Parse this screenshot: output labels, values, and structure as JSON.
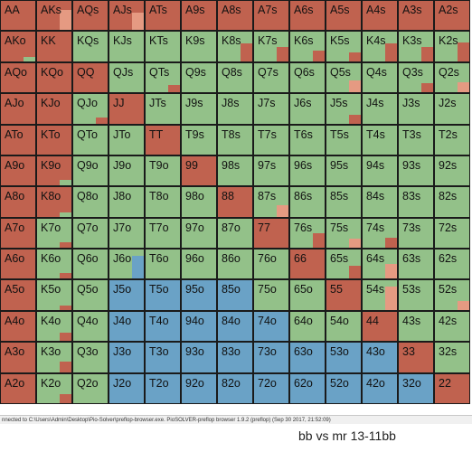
{
  "colors": {
    "raise": "#c0624f",
    "raise_small": "#e59a82",
    "call": "#93c189",
    "fold": "#6aa2c6"
  },
  "range_grid": {
    "cells": [
      [
        [
          "AA",
          "raise"
        ],
        [
          "AKs",
          "raise"
        ],
        [
          "AQs",
          "raise"
        ],
        [
          "AJs",
          "raise"
        ],
        [
          "ATs",
          "raise"
        ],
        [
          "A9s",
          "raise"
        ],
        [
          "A8s",
          "raise"
        ],
        [
          "A7s",
          "raise"
        ],
        [
          "A6s",
          "raise"
        ],
        [
          "A5s",
          "raise"
        ],
        [
          "A4s",
          "raise"
        ],
        [
          "A3s",
          "raise"
        ],
        [
          "A2s",
          "raise"
        ]
      ],
      [
        [
          "AKo",
          "raise"
        ],
        [
          "KK",
          "raise"
        ],
        [
          "KQs",
          "call"
        ],
        [
          "KJs",
          "call"
        ],
        [
          "KTs",
          "call"
        ],
        [
          "K9s",
          "call"
        ],
        [
          "K8s",
          "call"
        ],
        [
          "K7s",
          "call"
        ],
        [
          "K6s",
          "call"
        ],
        [
          "K5s",
          "call"
        ],
        [
          "K4s",
          "call"
        ],
        [
          "K3s",
          "call"
        ],
        [
          "K2s",
          "call"
        ]
      ],
      [
        [
          "AQo",
          "raise"
        ],
        [
          "KQo",
          "raise"
        ],
        [
          "QQ",
          "raise"
        ],
        [
          "QJs",
          "call"
        ],
        [
          "QTs",
          "call"
        ],
        [
          "Q9s",
          "call"
        ],
        [
          "Q8s",
          "call"
        ],
        [
          "Q7s",
          "call"
        ],
        [
          "Q6s",
          "call"
        ],
        [
          "Q5s",
          "call"
        ],
        [
          "Q4s",
          "call"
        ],
        [
          "Q3s",
          "call"
        ],
        [
          "Q2s",
          "call"
        ]
      ],
      [
        [
          "AJo",
          "raise"
        ],
        [
          "KJo",
          "raise"
        ],
        [
          "QJo",
          "call"
        ],
        [
          "JJ",
          "raise"
        ],
        [
          "JTs",
          "call"
        ],
        [
          "J9s",
          "call"
        ],
        [
          "J8s",
          "call"
        ],
        [
          "J7s",
          "call"
        ],
        [
          "J6s",
          "call"
        ],
        [
          "J5s",
          "call"
        ],
        [
          "J4s",
          "call"
        ],
        [
          "J3s",
          "call"
        ],
        [
          "J2s",
          "call"
        ]
      ],
      [
        [
          "ATo",
          "raise"
        ],
        [
          "KTo",
          "raise"
        ],
        [
          "QTo",
          "call"
        ],
        [
          "JTo",
          "call"
        ],
        [
          "TT",
          "raise"
        ],
        [
          "T9s",
          "call"
        ],
        [
          "T8s",
          "call"
        ],
        [
          "T7s",
          "call"
        ],
        [
          "T6s",
          "call"
        ],
        [
          "T5s",
          "call"
        ],
        [
          "T4s",
          "call"
        ],
        [
          "T3s",
          "call"
        ],
        [
          "T2s",
          "call"
        ]
      ],
      [
        [
          "A9o",
          "raise"
        ],
        [
          "K9o",
          "raise"
        ],
        [
          "Q9o",
          "call"
        ],
        [
          "J9o",
          "call"
        ],
        [
          "T9o",
          "call"
        ],
        [
          "99",
          "raise"
        ],
        [
          "98s",
          "call"
        ],
        [
          "97s",
          "call"
        ],
        [
          "96s",
          "call"
        ],
        [
          "95s",
          "call"
        ],
        [
          "94s",
          "call"
        ],
        [
          "93s",
          "call"
        ],
        [
          "92s",
          "call"
        ]
      ],
      [
        [
          "A8o",
          "raise"
        ],
        [
          "K8o",
          "raise"
        ],
        [
          "Q8o",
          "call"
        ],
        [
          "J8o",
          "call"
        ],
        [
          "T8o",
          "call"
        ],
        [
          "98o",
          "call"
        ],
        [
          "88",
          "raise"
        ],
        [
          "87s",
          "call"
        ],
        [
          "86s",
          "call"
        ],
        [
          "85s",
          "call"
        ],
        [
          "84s",
          "call"
        ],
        [
          "83s",
          "call"
        ],
        [
          "82s",
          "call"
        ]
      ],
      [
        [
          "A7o",
          "raise"
        ],
        [
          "K7o",
          "call"
        ],
        [
          "Q7o",
          "call"
        ],
        [
          "J7o",
          "call"
        ],
        [
          "T7o",
          "call"
        ],
        [
          "97o",
          "call"
        ],
        [
          "87o",
          "call"
        ],
        [
          "77",
          "raise"
        ],
        [
          "76s",
          "call"
        ],
        [
          "75s",
          "call"
        ],
        [
          "74s",
          "call"
        ],
        [
          "73s",
          "call"
        ],
        [
          "72s",
          "call"
        ]
      ],
      [
        [
          "A6o",
          "raise"
        ],
        [
          "K6o",
          "call"
        ],
        [
          "Q6o",
          "call"
        ],
        [
          "J6o",
          "call"
        ],
        [
          "T6o",
          "call"
        ],
        [
          "96o",
          "call"
        ],
        [
          "86o",
          "call"
        ],
        [
          "76o",
          "call"
        ],
        [
          "66",
          "raise"
        ],
        [
          "65s",
          "call"
        ],
        [
          "64s",
          "call"
        ],
        [
          "63s",
          "call"
        ],
        [
          "62s",
          "call"
        ]
      ],
      [
        [
          "A5o",
          "raise"
        ],
        [
          "K5o",
          "call"
        ],
        [
          "Q5o",
          "call"
        ],
        [
          "J5o",
          "fold"
        ],
        [
          "T5o",
          "fold"
        ],
        [
          "95o",
          "fold"
        ],
        [
          "85o",
          "fold"
        ],
        [
          "75o",
          "call"
        ],
        [
          "65o",
          "call"
        ],
        [
          "55",
          "raise"
        ],
        [
          "54s",
          "call"
        ],
        [
          "53s",
          "call"
        ],
        [
          "52s",
          "call"
        ]
      ],
      [
        [
          "A4o",
          "raise"
        ],
        [
          "K4o",
          "call"
        ],
        [
          "Q4o",
          "call"
        ],
        [
          "J4o",
          "fold"
        ],
        [
          "T4o",
          "fold"
        ],
        [
          "94o",
          "fold"
        ],
        [
          "84o",
          "fold"
        ],
        [
          "74o",
          "fold"
        ],
        [
          "64o",
          "call"
        ],
        [
          "54o",
          "call"
        ],
        [
          "44",
          "raise"
        ],
        [
          "43s",
          "call"
        ],
        [
          "42s",
          "call"
        ]
      ],
      [
        [
          "A3o",
          "raise"
        ],
        [
          "K3o",
          "call"
        ],
        [
          "Q3o",
          "call"
        ],
        [
          "J3o",
          "fold"
        ],
        [
          "T3o",
          "fold"
        ],
        [
          "93o",
          "fold"
        ],
        [
          "83o",
          "fold"
        ],
        [
          "73o",
          "fold"
        ],
        [
          "63o",
          "fold"
        ],
        [
          "53o",
          "fold"
        ],
        [
          "43o",
          "fold"
        ],
        [
          "33",
          "raise"
        ],
        [
          "32s",
          "call"
        ]
      ],
      [
        [
          "A2o",
          "raise"
        ],
        [
          "K2o",
          "call"
        ],
        [
          "Q2o",
          "call"
        ],
        [
          "J2o",
          "fold"
        ],
        [
          "T2o",
          "fold"
        ],
        [
          "92o",
          "fold"
        ],
        [
          "82o",
          "fold"
        ],
        [
          "72o",
          "fold"
        ],
        [
          "62o",
          "fold"
        ],
        [
          "52o",
          "fold"
        ],
        [
          "42o",
          "fold"
        ],
        [
          "32o",
          "fold"
        ],
        [
          "22",
          "raise"
        ]
      ]
    ]
  },
  "status_bar": {
    "text": "nnected to C:\\Users\\Admin\\Desktop\\Pio-Solver\\preflop-browser.exe. PioSOLVER-preflop browser 1.9.2 (preflop) (Sep 30 2017, 21:52:09)"
  },
  "caption": {
    "text": "bb vs mr 13-11bb"
  }
}
